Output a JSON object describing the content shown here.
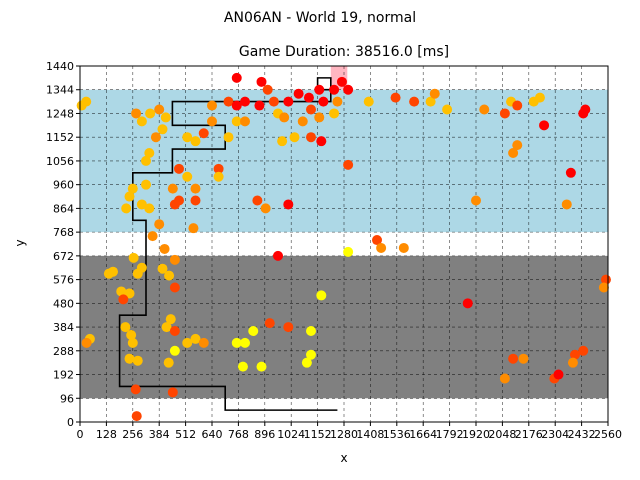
{
  "chart_data": {
    "type": "scatter",
    "suptitle": "AN06AN - World 19, normal",
    "title": "Game Duration: 38516.0 [ms]",
    "xlabel": "x",
    "ylabel": "y",
    "xlim": [
      0,
      2560
    ],
    "ylim": [
      0,
      1440
    ],
    "x_ticks": [
      0,
      128,
      256,
      384,
      512,
      640,
      768,
      896,
      1024,
      1152,
      1280,
      1408,
      1536,
      1664,
      1792,
      1920,
      2048,
      2176,
      2304,
      2432,
      2560
    ],
    "y_ticks": [
      0,
      96,
      192,
      288,
      384,
      480,
      576,
      672,
      768,
      864,
      960,
      1056,
      1152,
      1248,
      1344,
      1440
    ],
    "x_tick_labels": [
      "0",
      "128",
      "256",
      "384",
      "512",
      "640",
      "768",
      "896",
      "1024",
      "1152",
      "1280",
      "1408",
      "1536",
      "1664",
      "1792",
      "1920",
      "2048",
      "2176",
      "2304",
      "2432",
      "2560"
    ],
    "y_tick_labels": [
      "0",
      "96",
      "192",
      "288",
      "384",
      "480",
      "576",
      "672",
      "768",
      "864",
      "960",
      "1056",
      "1152",
      "1248",
      "1344",
      "1440"
    ],
    "grid": true,
    "colors": {
      "gray_band": "#808080",
      "blue_band": "#add8e6",
      "goal": "#ffb6c1",
      "path": "#000000",
      "yellow": "#ffff00",
      "amber": "#ffc000",
      "orange": "#ff8c00",
      "redorange": "#ff4500",
      "red": "#ff0000"
    },
    "regions": [
      {
        "type": "gray",
        "x": [
          0,
          2560
        ],
        "y": [
          96,
          672
        ]
      },
      {
        "type": "blue",
        "x": [
          0,
          2560
        ],
        "y": [
          768,
          1344
        ]
      },
      {
        "type": "goal",
        "x": [
          1216,
          1296
        ],
        "y": [
          1344,
          1440
        ]
      }
    ],
    "path": [
      [
        1248,
        48
      ],
      [
        704,
        48
      ],
      [
        704,
        144
      ],
      [
        192,
        144
      ],
      [
        192,
        432
      ],
      [
        320,
        432
      ],
      [
        320,
        816
      ],
      [
        256,
        816
      ],
      [
        256,
        1008
      ],
      [
        448,
        1008
      ],
      [
        448,
        1104
      ],
      [
        704,
        1104
      ],
      [
        704,
        1200
      ],
      [
        448,
        1200
      ],
      [
        448,
        1296
      ],
      [
        1216,
        1296
      ],
      [
        1216,
        1344
      ],
      [
        1152,
        1344
      ],
      [
        1152,
        1392
      ],
      [
        1216,
        1392
      ],
      [
        1216,
        1296
      ]
    ],
    "points": [
      {
        "x": 30,
        "y": 1296,
        "c": "amber"
      },
      {
        "x": 8,
        "y": 1280,
        "c": "amber"
      },
      {
        "x": 48,
        "y": 336,
        "c": "amber"
      },
      {
        "x": 32,
        "y": 320,
        "c": "orange"
      },
      {
        "x": 160,
        "y": 608,
        "c": "amber"
      },
      {
        "x": 140,
        "y": 600,
        "c": "amber"
      },
      {
        "x": 200,
        "y": 528,
        "c": "amber"
      },
      {
        "x": 240,
        "y": 520,
        "c": "amber"
      },
      {
        "x": 210,
        "y": 496,
        "c": "redorange"
      },
      {
        "x": 220,
        "y": 384,
        "c": "amber"
      },
      {
        "x": 248,
        "y": 352,
        "c": "amber"
      },
      {
        "x": 256,
        "y": 320,
        "c": "amber"
      },
      {
        "x": 240,
        "y": 256,
        "c": "amber"
      },
      {
        "x": 280,
        "y": 248,
        "c": "amber"
      },
      {
        "x": 270,
        "y": 132,
        "c": "redorange"
      },
      {
        "x": 275,
        "y": 24,
        "c": "redorange"
      },
      {
        "x": 224,
        "y": 864,
        "c": "amber"
      },
      {
        "x": 240,
        "y": 912,
        "c": "amber"
      },
      {
        "x": 256,
        "y": 944,
        "c": "amber"
      },
      {
        "x": 300,
        "y": 880,
        "c": "amber"
      },
      {
        "x": 336,
        "y": 864,
        "c": "amber"
      },
      {
        "x": 352,
        "y": 752,
        "c": "orange"
      },
      {
        "x": 384,
        "y": 800,
        "c": "orange"
      },
      {
        "x": 320,
        "y": 960,
        "c": "amber"
      },
      {
        "x": 320,
        "y": 1056,
        "c": "amber"
      },
      {
        "x": 336,
        "y": 1088,
        "c": "amber"
      },
      {
        "x": 368,
        "y": 1152,
        "c": "orange"
      },
      {
        "x": 400,
        "y": 1184,
        "c": "amber"
      },
      {
        "x": 300,
        "y": 1216,
        "c": "amber"
      },
      {
        "x": 340,
        "y": 1248,
        "c": "amber"
      },
      {
        "x": 384,
        "y": 1264,
        "c": "orange"
      },
      {
        "x": 416,
        "y": 1232,
        "c": "amber"
      },
      {
        "x": 272,
        "y": 1248,
        "c": "orange"
      },
      {
        "x": 260,
        "y": 664,
        "c": "amber"
      },
      {
        "x": 280,
        "y": 600,
        "c": "amber"
      },
      {
        "x": 300,
        "y": 624,
        "c": "amber"
      },
      {
        "x": 400,
        "y": 620,
        "c": "amber"
      },
      {
        "x": 432,
        "y": 592,
        "c": "amber"
      },
      {
        "x": 460,
        "y": 544,
        "c": "redorange"
      },
      {
        "x": 460,
        "y": 656,
        "c": "orange"
      },
      {
        "x": 410,
        "y": 700,
        "c": "orange"
      },
      {
        "x": 440,
        "y": 416,
        "c": "amber"
      },
      {
        "x": 420,
        "y": 384,
        "c": "amber"
      },
      {
        "x": 460,
        "y": 368,
        "c": "redorange"
      },
      {
        "x": 460,
        "y": 288,
        "c": "yellow"
      },
      {
        "x": 430,
        "y": 240,
        "c": "amber"
      },
      {
        "x": 520,
        "y": 320,
        "c": "amber"
      },
      {
        "x": 560,
        "y": 336,
        "c": "amber"
      },
      {
        "x": 600,
        "y": 320,
        "c": "orange"
      },
      {
        "x": 450,
        "y": 120,
        "c": "redorange"
      },
      {
        "x": 460,
        "y": 880,
        "c": "redorange"
      },
      {
        "x": 480,
        "y": 896,
        "c": "redorange"
      },
      {
        "x": 450,
        "y": 944,
        "c": "orange"
      },
      {
        "x": 480,
        "y": 1024,
        "c": "redorange"
      },
      {
        "x": 520,
        "y": 992,
        "c": "amber"
      },
      {
        "x": 560,
        "y": 944,
        "c": "orange"
      },
      {
        "x": 560,
        "y": 896,
        "c": "redorange"
      },
      {
        "x": 550,
        "y": 784,
        "c": "orange"
      },
      {
        "x": 520,
        "y": 1152,
        "c": "amber"
      },
      {
        "x": 560,
        "y": 1136,
        "c": "amber"
      },
      {
        "x": 600,
        "y": 1168,
        "c": "redorange"
      },
      {
        "x": 640,
        "y": 1216,
        "c": "orange"
      },
      {
        "x": 672,
        "y": 1024,
        "c": "redorange"
      },
      {
        "x": 672,
        "y": 992,
        "c": "amber"
      },
      {
        "x": 640,
        "y": 1280,
        "c": "orange"
      },
      {
        "x": 720,
        "y": 1296,
        "c": "redorange"
      },
      {
        "x": 760,
        "y": 1280,
        "c": "red"
      },
      {
        "x": 800,
        "y": 1296,
        "c": "red"
      },
      {
        "x": 760,
        "y": 1216,
        "c": "amber"
      },
      {
        "x": 720,
        "y": 1152,
        "c": "amber"
      },
      {
        "x": 800,
        "y": 1216,
        "c": "orange"
      },
      {
        "x": 760,
        "y": 1392,
        "c": "red"
      },
      {
        "x": 880,
        "y": 1376,
        "c": "red"
      },
      {
        "x": 910,
        "y": 1344,
        "c": "redorange"
      },
      {
        "x": 870,
        "y": 1280,
        "c": "red"
      },
      {
        "x": 940,
        "y": 1296,
        "c": "redorange"
      },
      {
        "x": 960,
        "y": 1248,
        "c": "amber"
      },
      {
        "x": 990,
        "y": 1232,
        "c": "orange"
      },
      {
        "x": 980,
        "y": 1136,
        "c": "amber"
      },
      {
        "x": 1040,
        "y": 1152,
        "c": "amber"
      },
      {
        "x": 1080,
        "y": 1216,
        "c": "orange"
      },
      {
        "x": 1010,
        "y": 1296,
        "c": "red"
      },
      {
        "x": 1060,
        "y": 1328,
        "c": "red"
      },
      {
        "x": 1110,
        "y": 1312,
        "c": "red"
      },
      {
        "x": 1120,
        "y": 1264,
        "c": "redorange"
      },
      {
        "x": 1160,
        "y": 1344,
        "c": "red"
      },
      {
        "x": 1180,
        "y": 1296,
        "c": "red"
      },
      {
        "x": 1232,
        "y": 1344,
        "c": "red"
      },
      {
        "x": 1270,
        "y": 1376,
        "c": "red"
      },
      {
        "x": 1300,
        "y": 1344,
        "c": "red"
      },
      {
        "x": 1248,
        "y": 1296,
        "c": "orange"
      },
      {
        "x": 1232,
        "y": 1248,
        "c": "amber"
      },
      {
        "x": 1160,
        "y": 1232,
        "c": "orange"
      },
      {
        "x": 1120,
        "y": 1152,
        "c": "redorange"
      },
      {
        "x": 1170,
        "y": 1136,
        "c": "red"
      },
      {
        "x": 1300,
        "y": 1040,
        "c": "redorange"
      },
      {
        "x": 860,
        "y": 896,
        "c": "redorange"
      },
      {
        "x": 900,
        "y": 864,
        "c": "orange"
      },
      {
        "x": 1010,
        "y": 880,
        "c": "red"
      },
      {
        "x": 960,
        "y": 672,
        "c": "red"
      },
      {
        "x": 1300,
        "y": 688,
        "c": "yellow"
      },
      {
        "x": 1170,
        "y": 512,
        "c": "yellow"
      },
      {
        "x": 1120,
        "y": 368,
        "c": "yellow"
      },
      {
        "x": 1120,
        "y": 272,
        "c": "yellow"
      },
      {
        "x": 1100,
        "y": 240,
        "c": "yellow"
      },
      {
        "x": 1010,
        "y": 384,
        "c": "redorange"
      },
      {
        "x": 920,
        "y": 400,
        "c": "redorange"
      },
      {
        "x": 840,
        "y": 368,
        "c": "yellow"
      },
      {
        "x": 760,
        "y": 320,
        "c": "yellow"
      },
      {
        "x": 800,
        "y": 320,
        "c": "yellow"
      },
      {
        "x": 790,
        "y": 224,
        "c": "yellow"
      },
      {
        "x": 880,
        "y": 224,
        "c": "yellow"
      },
      {
        "x": 1440,
        "y": 736,
        "c": "redorange"
      },
      {
        "x": 1460,
        "y": 704,
        "c": "orange"
      },
      {
        "x": 1570,
        "y": 704,
        "c": "orange"
      },
      {
        "x": 1400,
        "y": 1296,
        "c": "amber"
      },
      {
        "x": 1530,
        "y": 1312,
        "c": "redorange"
      },
      {
        "x": 1620,
        "y": 1296,
        "c": "redorange"
      },
      {
        "x": 1700,
        "y": 1296,
        "c": "amber"
      },
      {
        "x": 1720,
        "y": 1328,
        "c": "orange"
      },
      {
        "x": 1780,
        "y": 1264,
        "c": "amber"
      },
      {
        "x": 1960,
        "y": 1264,
        "c": "orange"
      },
      {
        "x": 2060,
        "y": 1248,
        "c": "redorange"
      },
      {
        "x": 2090,
        "y": 1296,
        "c": "amber"
      },
      {
        "x": 2120,
        "y": 1280,
        "c": "redorange"
      },
      {
        "x": 2200,
        "y": 1296,
        "c": "amber"
      },
      {
        "x": 2230,
        "y": 1312,
        "c": "amber"
      },
      {
        "x": 2250,
        "y": 1200,
        "c": "red"
      },
      {
        "x": 2120,
        "y": 1120,
        "c": "orange"
      },
      {
        "x": 2100,
        "y": 1088,
        "c": "orange"
      },
      {
        "x": 1920,
        "y": 896,
        "c": "orange"
      },
      {
        "x": 2380,
        "y": 1008,
        "c": "red"
      },
      {
        "x": 2360,
        "y": 880,
        "c": "orange"
      },
      {
        "x": 2440,
        "y": 1248,
        "c": "red"
      },
      {
        "x": 2450,
        "y": 1264,
        "c": "red"
      },
      {
        "x": 1880,
        "y": 480,
        "c": "red"
      },
      {
        "x": 2060,
        "y": 176,
        "c": "orange"
      },
      {
        "x": 2100,
        "y": 256,
        "c": "redorange"
      },
      {
        "x": 2150,
        "y": 256,
        "c": "orange"
      },
      {
        "x": 2300,
        "y": 176,
        "c": "redorange"
      },
      {
        "x": 2320,
        "y": 192,
        "c": "red"
      },
      {
        "x": 2400,
        "y": 272,
        "c": "redorange"
      },
      {
        "x": 2440,
        "y": 288,
        "c": "redorange"
      },
      {
        "x": 2390,
        "y": 240,
        "c": "orange"
      },
      {
        "x": 2550,
        "y": 576,
        "c": "redorange"
      },
      {
        "x": 2540,
        "y": 544,
        "c": "orange"
      }
    ]
  }
}
